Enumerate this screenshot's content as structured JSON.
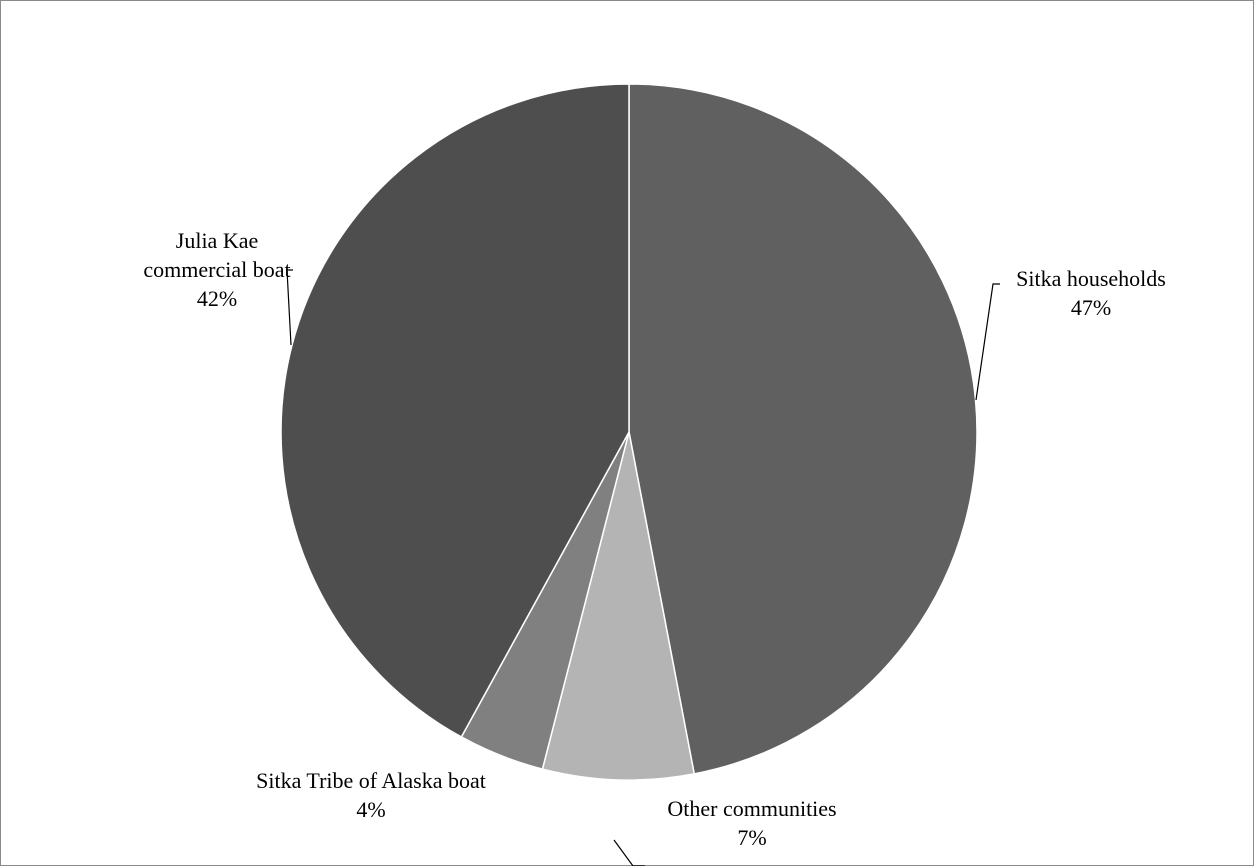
{
  "chart_data": {
    "type": "pie",
    "categories": [
      "Sitka households",
      "Other communities",
      "Sitka Tribe of Alaska boat",
      "Julia Kae commercial boat"
    ],
    "values": [
      47,
      7,
      4,
      42
    ],
    "value_labels": [
      "47%",
      "7%",
      "4%",
      "42%"
    ],
    "colors": [
      "#606060",
      "#b4b4b4",
      "#808080",
      "#4e4e4e"
    ]
  }
}
